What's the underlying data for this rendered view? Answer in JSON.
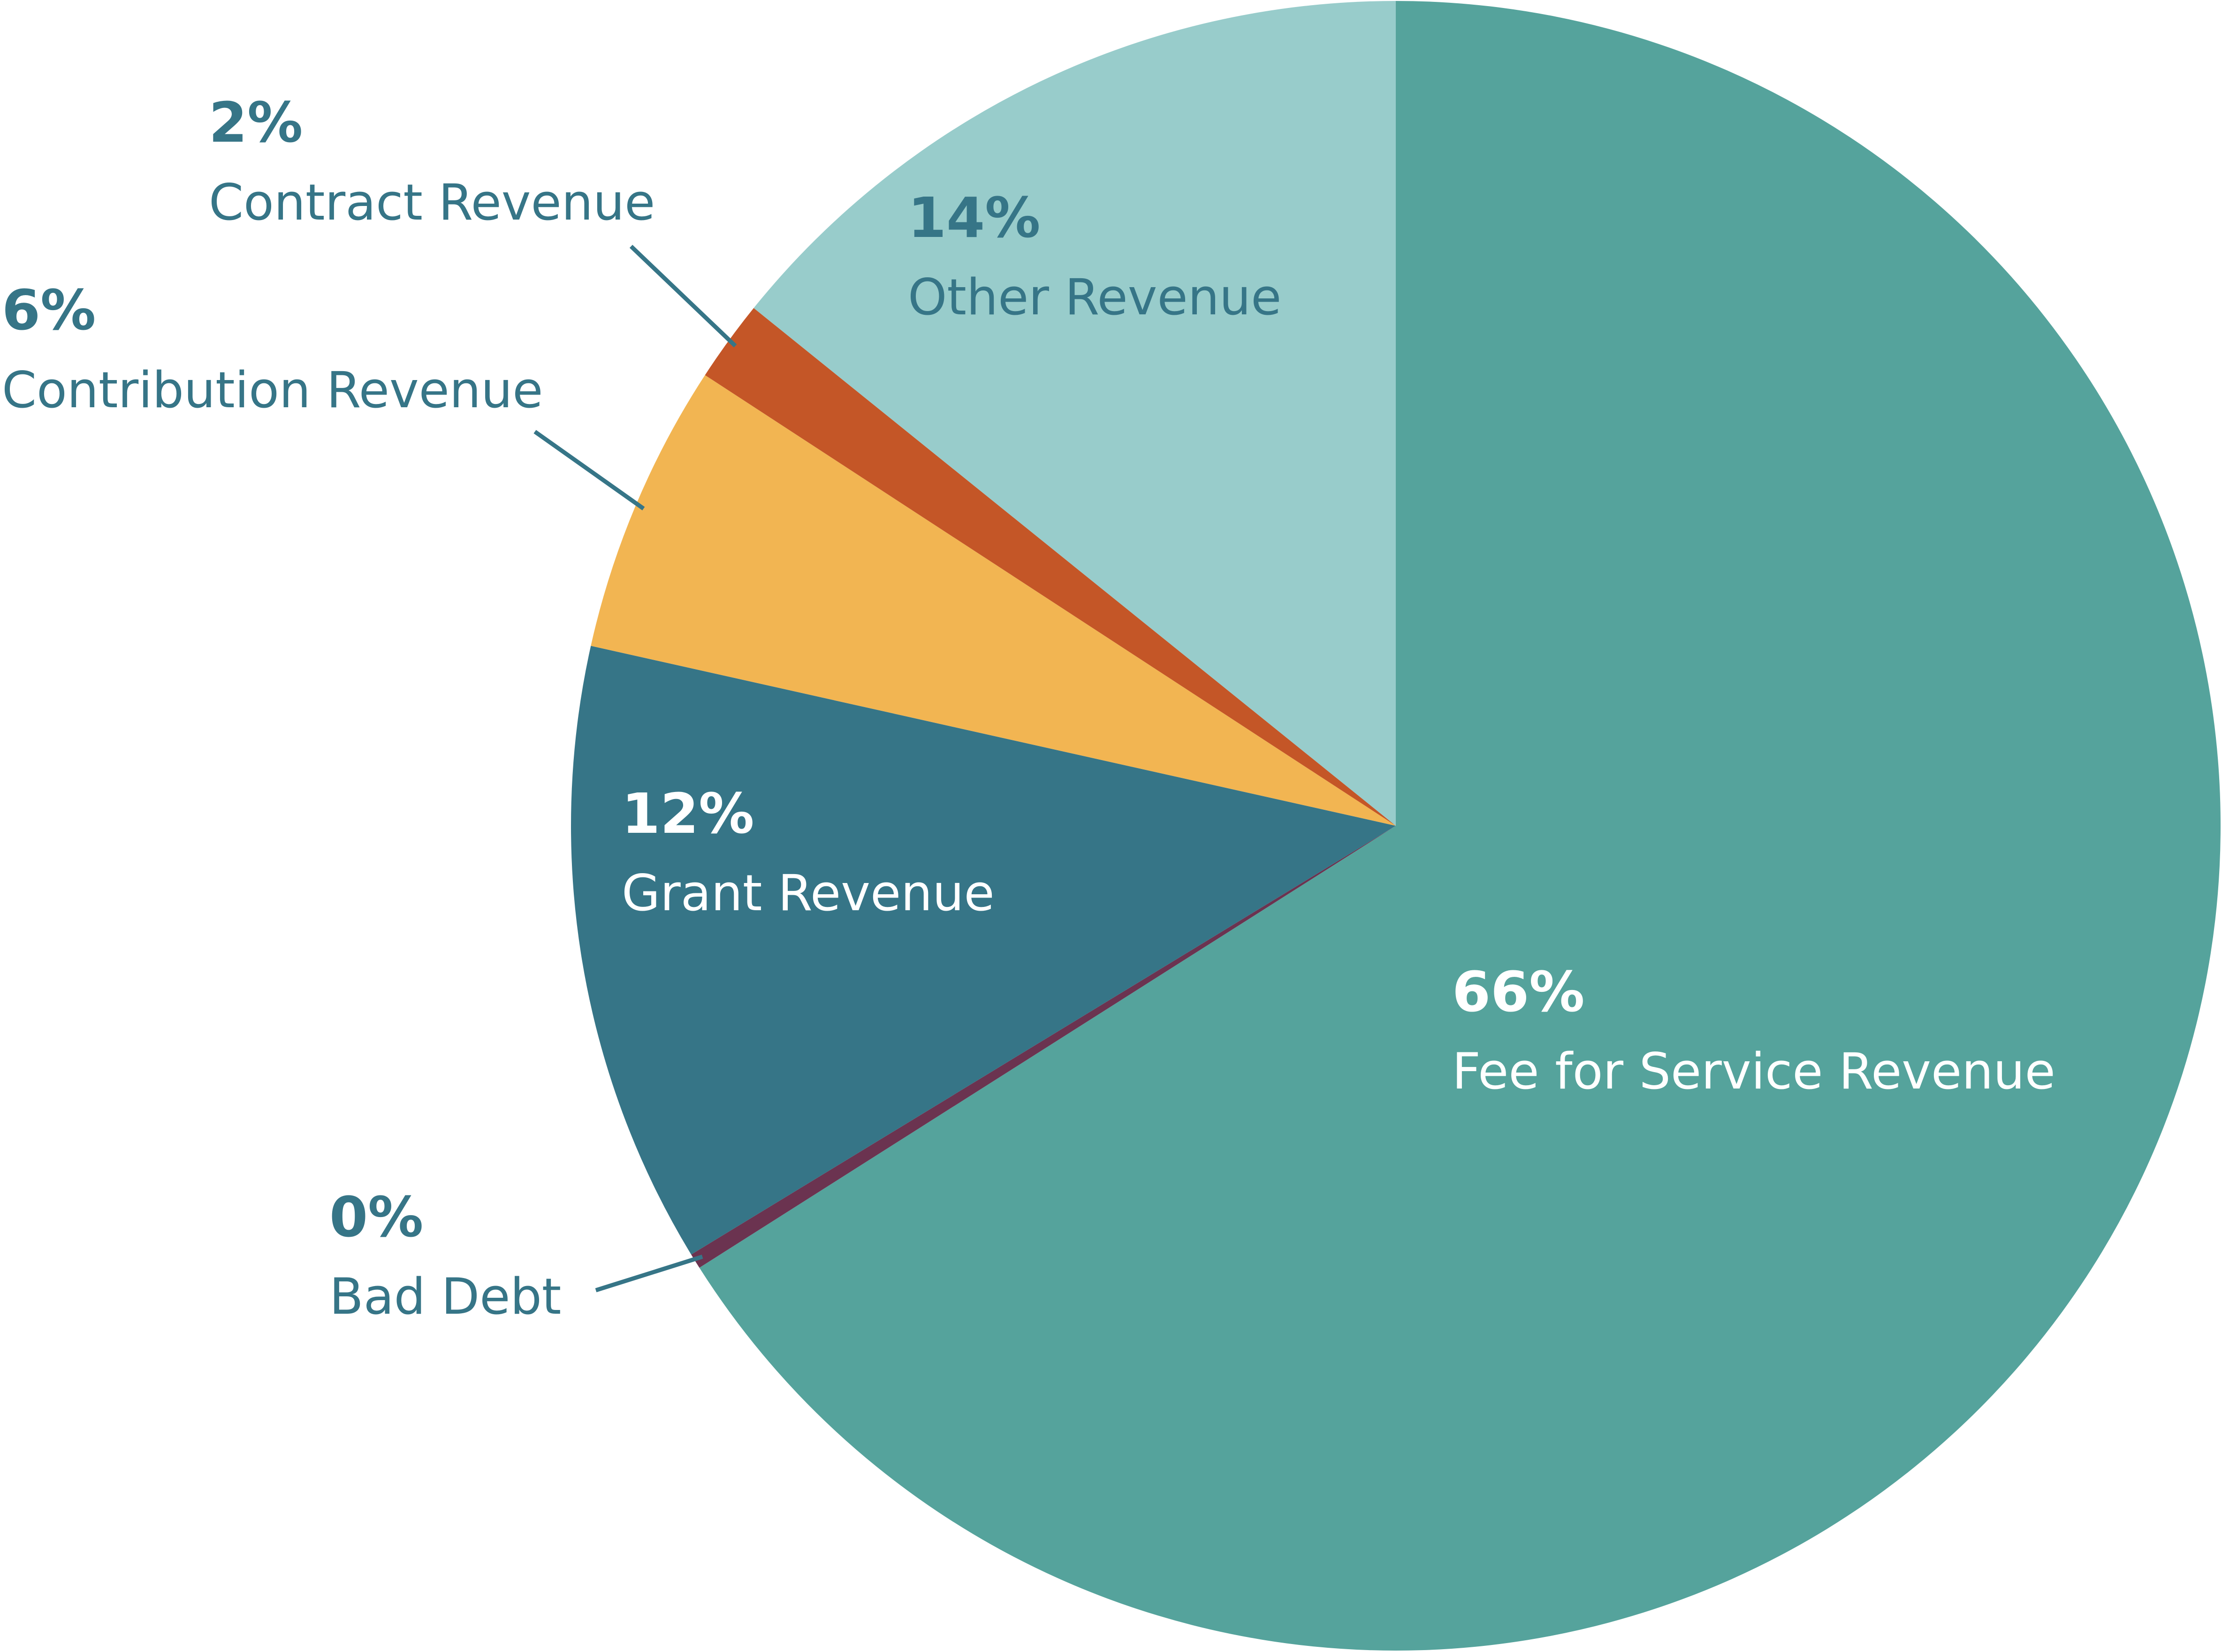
{
  "chart_data": {
    "type": "pie",
    "title": "",
    "slices": [
      {
        "name": "Fee for Service Revenue",
        "percent_label": "66%",
        "value": 66.0,
        "color": "#55a39c"
      },
      {
        "name": "Bad Debt",
        "percent_label": "0%",
        "value": 0.3,
        "color": "#6b3350"
      },
      {
        "name": "Grant Revenue",
        "percent_label": "12%",
        "value": 12.2,
        "color": "#367587"
      },
      {
        "name": "Contribution Revenue",
        "percent_label": "6%",
        "value": 5.7,
        "color": "#f2b552"
      },
      {
        "name": "Contract Revenue",
        "percent_label": "2%",
        "value": 1.6,
        "color": "#c45627"
      },
      {
        "name": "Other Revenue",
        "percent_label": "14%",
        "value": 14.2,
        "color": "#98cccb"
      }
    ],
    "legend": "none",
    "labels": "direct labels with leader lines for small slices"
  },
  "colors": {
    "label_dark": "#367587",
    "label_light": "#ffffff",
    "leader_line": "#367587"
  }
}
